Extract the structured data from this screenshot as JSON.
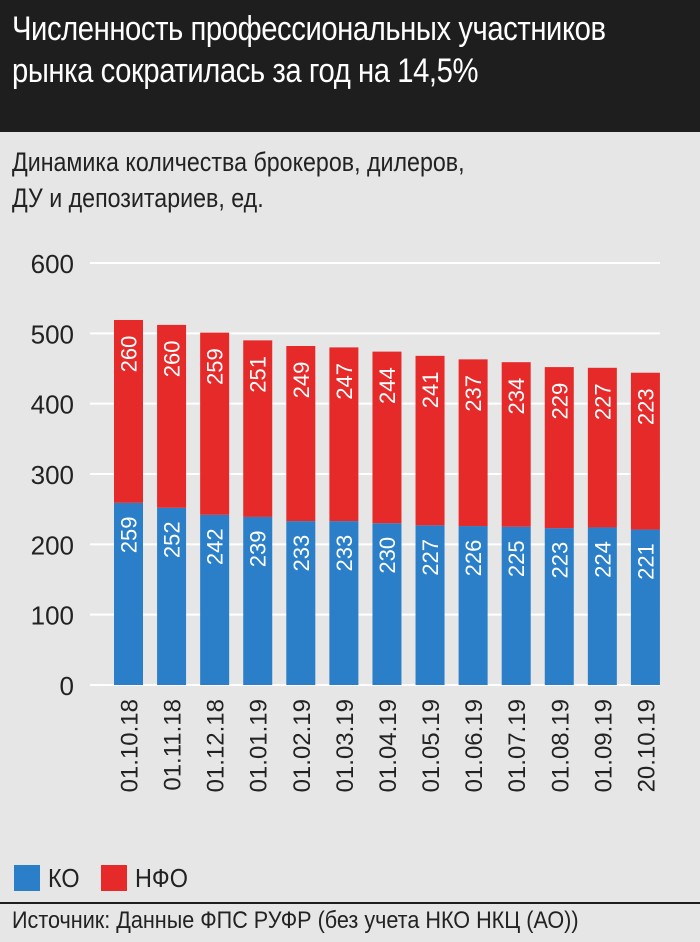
{
  "header": {
    "title_line1": "Численность профессиональных участников",
    "title_line2": "рынка сократилась за год на 14,5%"
  },
  "subtitle_line1": "Динамика количества брокеров, дилеров,",
  "subtitle_line2": "ДУ и депозитариев, ед.",
  "legend": {
    "ko_label": "КО",
    "nfo_label": "НФО"
  },
  "source": "Источник: Данные ФПС РУФР (без учета НКО НКЦ (АО))",
  "colors": {
    "ko": "#2a7fc8",
    "nfo": "#e62a2a",
    "panel": "#e6e6e6",
    "header": "#1e1e1e"
  },
  "chart_data": {
    "type": "bar",
    "stacked": true,
    "categories": [
      "01.10.18",
      "01.11.18",
      "01.12.18",
      "01.01.19",
      "01.02.19",
      "01.03.19",
      "01.04.19",
      "01.05.19",
      "01.06.19",
      "01.07.19",
      "01.08.19",
      "01.09.19",
      "20.10.19"
    ],
    "series": [
      {
        "name": "КО",
        "values": [
          259,
          252,
          242,
          239,
          233,
          233,
          230,
          227,
          226,
          225,
          223,
          224,
          221
        ]
      },
      {
        "name": "НФО",
        "values": [
          260,
          260,
          259,
          251,
          249,
          247,
          244,
          241,
          237,
          234,
          229,
          227,
          223
        ]
      }
    ],
    "yticks": [
      0,
      100,
      200,
      300,
      400,
      500,
      600
    ],
    "ylim": [
      0,
      600
    ],
    "grid": true
  }
}
